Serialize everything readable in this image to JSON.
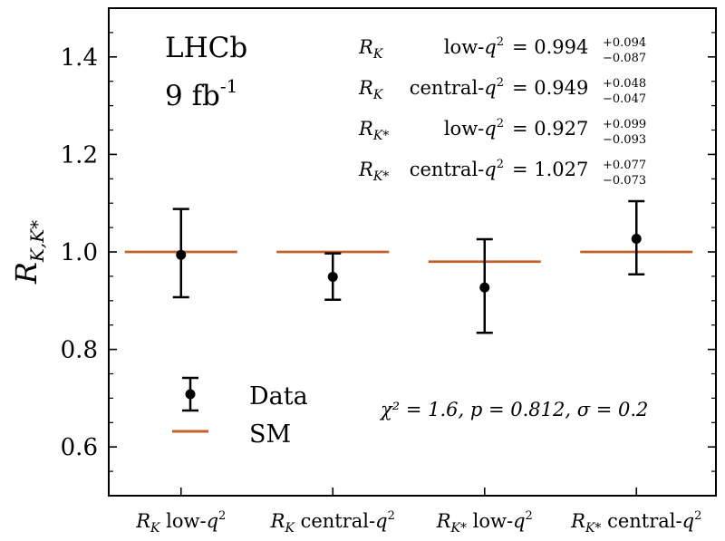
{
  "chart_data": {
    "type": "scatter",
    "ylabel": "R_{K,K*}",
    "ylim": [
      0.5,
      1.5
    ],
    "yticks": [
      "0.6",
      "0.8",
      "1.0",
      "1.2",
      "1.4"
    ],
    "grid": false,
    "categories": [
      "R_K low-q^2",
      "R_K central-q^2",
      "R_K* low-q^2",
      "R_K* central-q^2"
    ],
    "series": [
      {
        "name": "Data",
        "values": [
          0.994,
          0.949,
          0.927,
          1.027
        ],
        "err_up": [
          0.094,
          0.048,
          0.099,
          0.077
        ],
        "err_down": [
          0.087,
          0.047,
          0.093,
          0.073
        ]
      },
      {
        "name": "SM",
        "values": [
          1.0,
          1.0,
          0.98,
          1.0
        ]
      }
    ],
    "annotations": {
      "experiment": "LHCb",
      "luminosity": "9 fb",
      "luminosity_exp": "-1",
      "stats": "χ² = 1.6, p = 0.812, σ = 0.2"
    },
    "results": [
      {
        "sym": "R",
        "sub": "K",
        "region": "low-q",
        "value": "0.994",
        "up": "+0.094",
        "down": "−0.087"
      },
      {
        "sym": "R",
        "sub": "K",
        "region": "central-q",
        "value": "0.949",
        "up": "+0.048",
        "down": "−0.047"
      },
      {
        "sym": "R",
        "sub": "K*",
        "region": "low-q",
        "value": "0.927",
        "up": "+0.099",
        "down": "−0.093"
      },
      {
        "sym": "R",
        "sub": "K*",
        "region": "central-q",
        "value": "1.027",
        "up": "+0.077",
        "down": "−0.073"
      }
    ],
    "legend": [
      "Data",
      "SM"
    ],
    "legend_position": "lower-left",
    "colors": {
      "data": "#000000",
      "sm": "#c0622a",
      "frame": "#000000"
    }
  }
}
